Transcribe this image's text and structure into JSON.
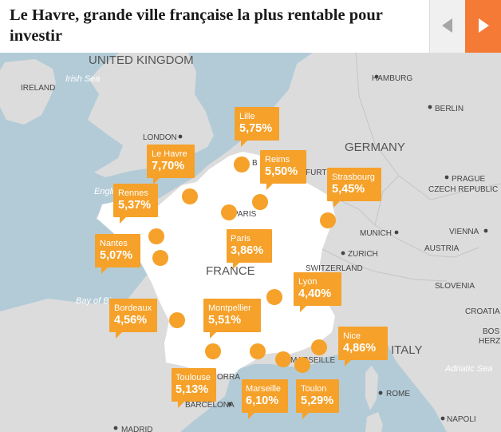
{
  "header": {
    "title": "Le Havre, grande ville française la plus rentable pour investir",
    "prev_icon": "triangle-left-icon",
    "next_icon": "triangle-right-icon"
  },
  "colors": {
    "accent": "#f47a36",
    "marker": "#f5a12a",
    "sea": "#b3cbd7",
    "land": "#dcdcdc",
    "france": "#ffffff"
  },
  "map_labels": {
    "countries": [
      "UNITED KINGDOM",
      "IRELAND",
      "GERMANY",
      "FRANCE",
      "SWITZERLAND",
      "AUSTRIA",
      "SLOVENIA",
      "CROATIA",
      "BOS",
      "HERZ",
      "CZECH REPUBLIC",
      "ITALY"
    ],
    "cities": [
      "HAMBURG",
      "BERLIN",
      "LONDON",
      "PRAGUE",
      "MUNICH",
      "VIENNA",
      "ZURICH",
      "PARIS",
      "MARSEILLE",
      "ROME",
      "NAPOLI",
      "MADRID",
      "BARCELONA",
      "B"
    ],
    "seas": [
      "Irish Sea",
      "English Channel",
      "Bay of Biscay",
      "Adriatic Sea"
    ],
    "partial": [
      "FURT",
      "ORRA"
    ]
  },
  "cities": [
    {
      "name": "Lille",
      "value": "5,75%"
    },
    {
      "name": "Le Havre",
      "value": "7,70%"
    },
    {
      "name": "Reims",
      "value": "5,50%"
    },
    {
      "name": "Strasbourg",
      "value": "5,45%"
    },
    {
      "name": "Rennes",
      "value": "5,37%"
    },
    {
      "name": "Nantes",
      "value": "5,07%"
    },
    {
      "name": "Paris",
      "value": "3,86%"
    },
    {
      "name": "Lyon",
      "value": "4,40%"
    },
    {
      "name": "Bordeaux",
      "value": "4,56%"
    },
    {
      "name": "Montpellier",
      "value": "5,51%"
    },
    {
      "name": "Nice",
      "value": "4,86%"
    },
    {
      "name": "Toulouse",
      "value": "5,13%"
    },
    {
      "name": "Marseille",
      "value": "6,10%"
    },
    {
      "name": "Toulon",
      "value": "5,29%"
    }
  ]
}
